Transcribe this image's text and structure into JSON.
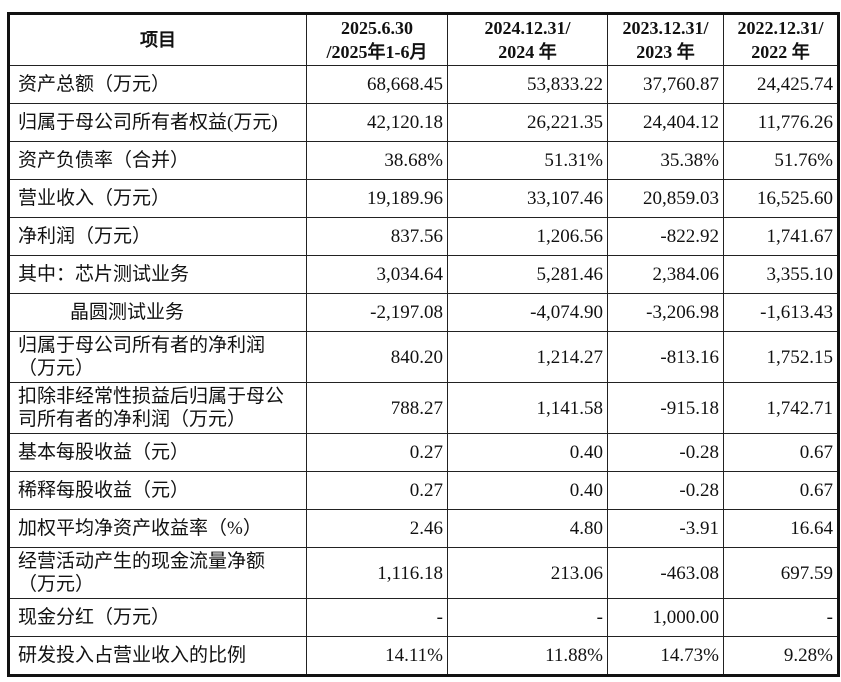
{
  "table": {
    "headers": [
      [
        "项目"
      ],
      [
        "2025.6.30",
        "/2025年1-6月"
      ],
      [
        "2024.12.31/",
        "2024 年"
      ],
      [
        "2023.12.31/",
        "2023 年"
      ],
      [
        "2022.12.31/",
        "2022 年"
      ]
    ],
    "rows": [
      {
        "label": "资产总额（万元）",
        "values": [
          "68,668.45",
          "53,833.22",
          "37,760.87",
          "24,425.74"
        ]
      },
      {
        "label": "归属于母公司所有者权益(万元)",
        "values": [
          "42,120.18",
          "26,221.35",
          "24,404.12",
          "11,776.26"
        ]
      },
      {
        "label": "资产负债率（合并）",
        "values": [
          "38.68%",
          "51.31%",
          "35.38%",
          "51.76%"
        ]
      },
      {
        "label": "营业收入（万元）",
        "values": [
          "19,189.96",
          "33,107.46",
          "20,859.03",
          "16,525.60"
        ]
      },
      {
        "label": "净利润（万元）",
        "values": [
          "837.56",
          "1,206.56",
          "-822.92",
          "1,741.67"
        ]
      },
      {
        "label": "其中：芯片测试业务",
        "values": [
          "3,034.64",
          "5,281.46",
          "2,384.06",
          "3,355.10"
        ]
      },
      {
        "label": "晶圆测试业务",
        "values": [
          "-2,197.08",
          "-4,074.90",
          "-3,206.98",
          "-1,613.43"
        ]
      },
      {
        "label": "归属于母公司所有者的净利润（万元）",
        "values": [
          "840.20",
          "1,214.27",
          "-813.16",
          "1,752.15"
        ]
      },
      {
        "label": "扣除非经常性损益后归属于母公司所有者的净利润（万元）",
        "values": [
          "788.27",
          "1,141.58",
          "-915.18",
          "1,742.71"
        ]
      },
      {
        "label": "基本每股收益（元）",
        "values": [
          "0.27",
          "0.40",
          "-0.28",
          "0.67"
        ]
      },
      {
        "label": "稀释每股收益（元）",
        "values": [
          "0.27",
          "0.40",
          "-0.28",
          "0.67"
        ]
      },
      {
        "label": "加权平均净资产收益率（%）",
        "values": [
          "2.46",
          "4.80",
          "-3.91",
          "16.64"
        ]
      },
      {
        "label": "经营活动产生的现金流量净额（万元）",
        "values": [
          "1,116.18",
          "213.06",
          "-463.08",
          "697.59"
        ]
      },
      {
        "label": "现金分红（万元）",
        "values": [
          "-",
          "-",
          "1,000.00",
          "-"
        ]
      },
      {
        "label": "研发投入占营业收入的比例",
        "values": [
          "14.11%",
          "11.88%",
          "14.73%",
          "9.28%"
        ]
      }
    ]
  }
}
